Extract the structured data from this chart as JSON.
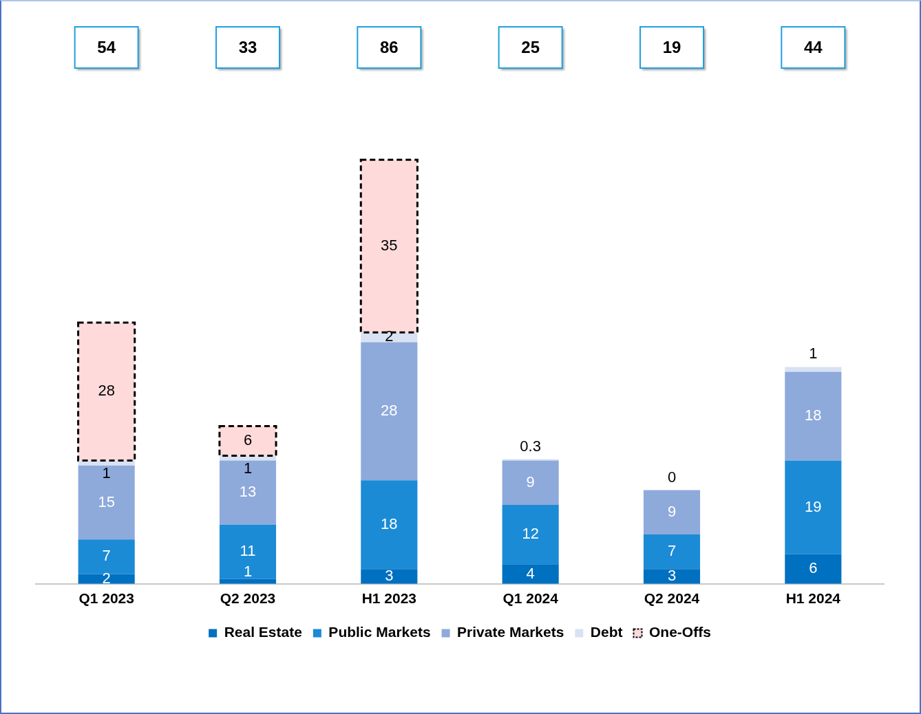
{
  "chart_data": {
    "type": "bar",
    "stacked": true,
    "data_labels": true,
    "legend": "bottom",
    "grid": false,
    "categories": [
      "Q1 2023",
      "Q2 2023",
      "H1 2023",
      "Q1 2024",
      "Q2 2024",
      "H1 2024"
    ],
    "series": [
      {
        "name": "Real Estate",
        "color": "#0070c0",
        "values": [
          2,
          1,
          3,
          4,
          3,
          6
        ]
      },
      {
        "name": "Public Markets",
        "color": "#1b8bd6",
        "values": [
          7,
          11,
          18,
          12,
          7,
          19
        ]
      },
      {
        "name": "Private Markets",
        "color": "#8eaadb",
        "values": [
          15,
          13,
          28,
          9,
          9,
          18
        ]
      },
      {
        "name": "Debt",
        "color": "#d9e2f3",
        "values": [
          1,
          1,
          2,
          0.3,
          0,
          1
        ]
      },
      {
        "name": "One-Offs",
        "color": "#ffdada",
        "line_style": "dashed",
        "values": [
          28,
          6,
          35,
          null,
          null,
          null
        ]
      }
    ],
    "annotations": [
      "54",
      "33",
      "86",
      "25",
      "19",
      "44"
    ]
  }
}
